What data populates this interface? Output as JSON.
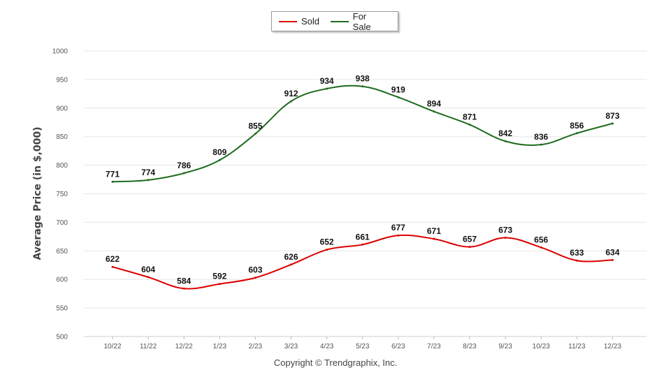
{
  "legend": {
    "sold_label": "Sold",
    "for_sale_label": "For Sale"
  },
  "footer": {
    "copyright": "Copyright © Trendgraphix, Inc."
  },
  "colors": {
    "sold": "#dd0000",
    "for_sale": "#1e6b1e",
    "grid": "#e6e6e6"
  },
  "chart_data": {
    "type": "line",
    "ylabel": "Average Price (in $,000)",
    "xlabel": "",
    "ylim": [
      500,
      1000
    ],
    "yticks": [
      500,
      550,
      600,
      650,
      700,
      750,
      800,
      850,
      900,
      950,
      1000
    ],
    "categories": [
      "10/22",
      "11/22",
      "12/22",
      "1/23",
      "2/23",
      "3/23",
      "4/23",
      "5/23",
      "6/23",
      "7/23",
      "8/23",
      "9/23",
      "10/23",
      "11/23",
      "12/23"
    ],
    "grid": true,
    "legend_position": "top-center",
    "series": [
      {
        "name": "Sold",
        "values": [
          622,
          604,
          584,
          592,
          603,
          626,
          652,
          661,
          677,
          671,
          657,
          673,
          656,
          633,
          634
        ]
      },
      {
        "name": "For Sale",
        "values": [
          771,
          774,
          786,
          809,
          855,
          912,
          934,
          938,
          919,
          894,
          871,
          842,
          836,
          856,
          873
        ]
      }
    ]
  }
}
